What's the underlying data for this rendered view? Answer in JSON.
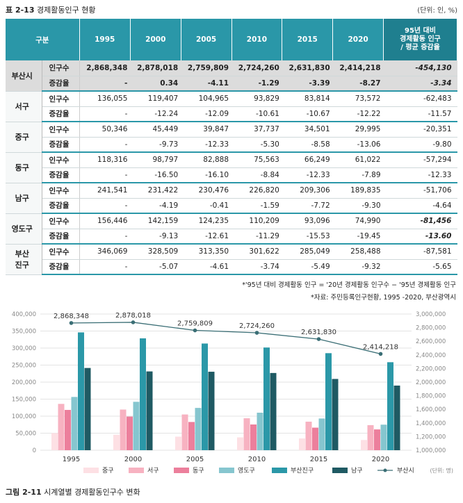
{
  "table": {
    "label": "표 2-13",
    "title": "경제활동인구 현황",
    "unit": "(단위: 인, %)",
    "header_first": "구분",
    "years": [
      "1995",
      "2000",
      "2005",
      "2010",
      "2015",
      "2020"
    ],
    "header_last": [
      "95년 대비",
      "경제활동 인구",
      "/ 평균 증감율"
    ],
    "rows": [
      {
        "region": "부산시",
        "metric": "인구수",
        "values": [
          "2,868,348",
          "2,878,018",
          "2,759,809",
          "2,724,260",
          "2,631,830",
          "2,414,218"
        ],
        "last": "-454,130"
      },
      {
        "region": "",
        "metric": "증감율",
        "values": [
          "-",
          "0.34",
          "-4.11",
          "-1.29",
          "-3.39",
          "-8.27"
        ],
        "last": "-3.34"
      },
      {
        "region": "서구",
        "metric": "인구수",
        "values": [
          "136,055",
          "119,407",
          "104,965",
          "93,829",
          "83,814",
          "73,572"
        ],
        "last": "-62,483"
      },
      {
        "region": "",
        "metric": "증감율",
        "values": [
          "-",
          "-12.24",
          "-12.09",
          "-10.61",
          "-10.67",
          "-12.22"
        ],
        "last": "-11.57"
      },
      {
        "region": "중구",
        "metric": "인구수",
        "values": [
          "50,346",
          "45,449",
          "39,847",
          "37,737",
          "34,501",
          "29,995"
        ],
        "last": "-20,351"
      },
      {
        "region": "",
        "metric": "증감율",
        "values": [
          "-",
          "-9.73",
          "-12.33",
          "-5.30",
          "-8.58",
          "-13.06"
        ],
        "last": "-9.80"
      },
      {
        "region": "동구",
        "metric": "인구수",
        "values": [
          "118,316",
          "98,797",
          "82,888",
          "75,563",
          "66,249",
          "61,022"
        ],
        "last": "-57,294"
      },
      {
        "region": "",
        "metric": "증감율",
        "values": [
          "-",
          "-16.50",
          "-16.10",
          "-8.84",
          "-12.33",
          "-7.89"
        ],
        "last": "-12.33"
      },
      {
        "region": "남구",
        "metric": "인구수",
        "values": [
          "241,541",
          "231,422",
          "230,476",
          "226,820",
          "209,306",
          "189,835"
        ],
        "last": "-51,706"
      },
      {
        "region": "",
        "metric": "증감율",
        "values": [
          "-",
          "-4.19",
          "-0.41",
          "-1.59",
          "-7.72",
          "-9.30"
        ],
        "last": "-4.64"
      },
      {
        "region": "영도구",
        "metric": "인구수",
        "values": [
          "156,446",
          "142,159",
          "124,235",
          "110,209",
          "93,096",
          "74,990"
        ],
        "last": "-81,456"
      },
      {
        "region": "",
        "metric": "증감율",
        "values": [
          "-",
          "-9.13",
          "-12.61",
          "-11.29",
          "-15.53",
          "-19.45"
        ],
        "last": "-13.60"
      },
      {
        "region": "부산진구",
        "metric": "인구수",
        "values": [
          "346,069",
          "328,509",
          "313,350",
          "301,622",
          "285,049",
          "258,488"
        ],
        "last": "-87,581"
      },
      {
        "region": "",
        "metric": "증감율",
        "values": [
          "-",
          "-5.07",
          "-4.61",
          "-3.74",
          "-5.49",
          "-9.32"
        ],
        "last": "-5.65"
      }
    ],
    "region_display": {
      "부산진구": [
        "부산",
        "진구"
      ]
    },
    "notes": [
      "*'95년 대비 경제활동 인구 = '20년 경제활동 인구수 − '95년 경제활동 인구",
      "*자료: 주민등록인구현황, 1995 -2020, 부산광역시"
    ]
  },
  "chart_data": {
    "type": "bar",
    "categories": [
      "1995",
      "2000",
      "2005",
      "2010",
      "2015",
      "2020"
    ],
    "series": [
      {
        "name": "중구",
        "color": "#fde0e4",
        "values": [
          50346,
          45449,
          39847,
          37737,
          34501,
          29995
        ]
      },
      {
        "name": "서구",
        "color": "#f7b2c1",
        "values": [
          136055,
          119407,
          104965,
          93829,
          83814,
          73572
        ]
      },
      {
        "name": "동구",
        "color": "#ec7f9c",
        "values": [
          118316,
          98797,
          82888,
          75563,
          66249,
          61022
        ]
      },
      {
        "name": "영도구",
        "color": "#86c6cf",
        "values": [
          156446,
          142159,
          124235,
          110209,
          93096,
          74990
        ]
      },
      {
        "name": "부산진구",
        "color": "#2b98a8",
        "values": [
          346069,
          328509,
          313350,
          301622,
          285049,
          258488
        ]
      },
      {
        "name": "남구",
        "color": "#1f5a63",
        "values": [
          241541,
          231422,
          230476,
          226820,
          209306,
          189835
        ]
      }
    ],
    "line": {
      "name": "부산시",
      "color": "#3a6e75",
      "values": [
        2868348,
        2878018,
        2759809,
        2724260,
        2631830,
        2414218
      ],
      "labels": [
        "2,868,348",
        "2,878,018",
        "2,759,809",
        "2,724,260",
        "2,631,830",
        "2,414,218"
      ]
    },
    "ylim_left": [
      0,
      400000
    ],
    "yticks_left": [
      "0",
      "50,000",
      "100,000",
      "150,000",
      "200,000",
      "250,000",
      "300,000",
      "350,000",
      "400,000"
    ],
    "ylim_right": [
      1000000,
      3000000
    ],
    "yticks_right": [
      "1,000,000",
      "1,200,000",
      "1,400,000",
      "1,600,000",
      "1,800,000",
      "2,000,000",
      "2,200,000",
      "2,400,000",
      "2,600,000",
      "2,800,000",
      "3,000,000"
    ],
    "unit": "(단위: 명)"
  },
  "figure": {
    "label": "그림 2-11",
    "title": "시계열별 경제활동인구수 변화"
  }
}
